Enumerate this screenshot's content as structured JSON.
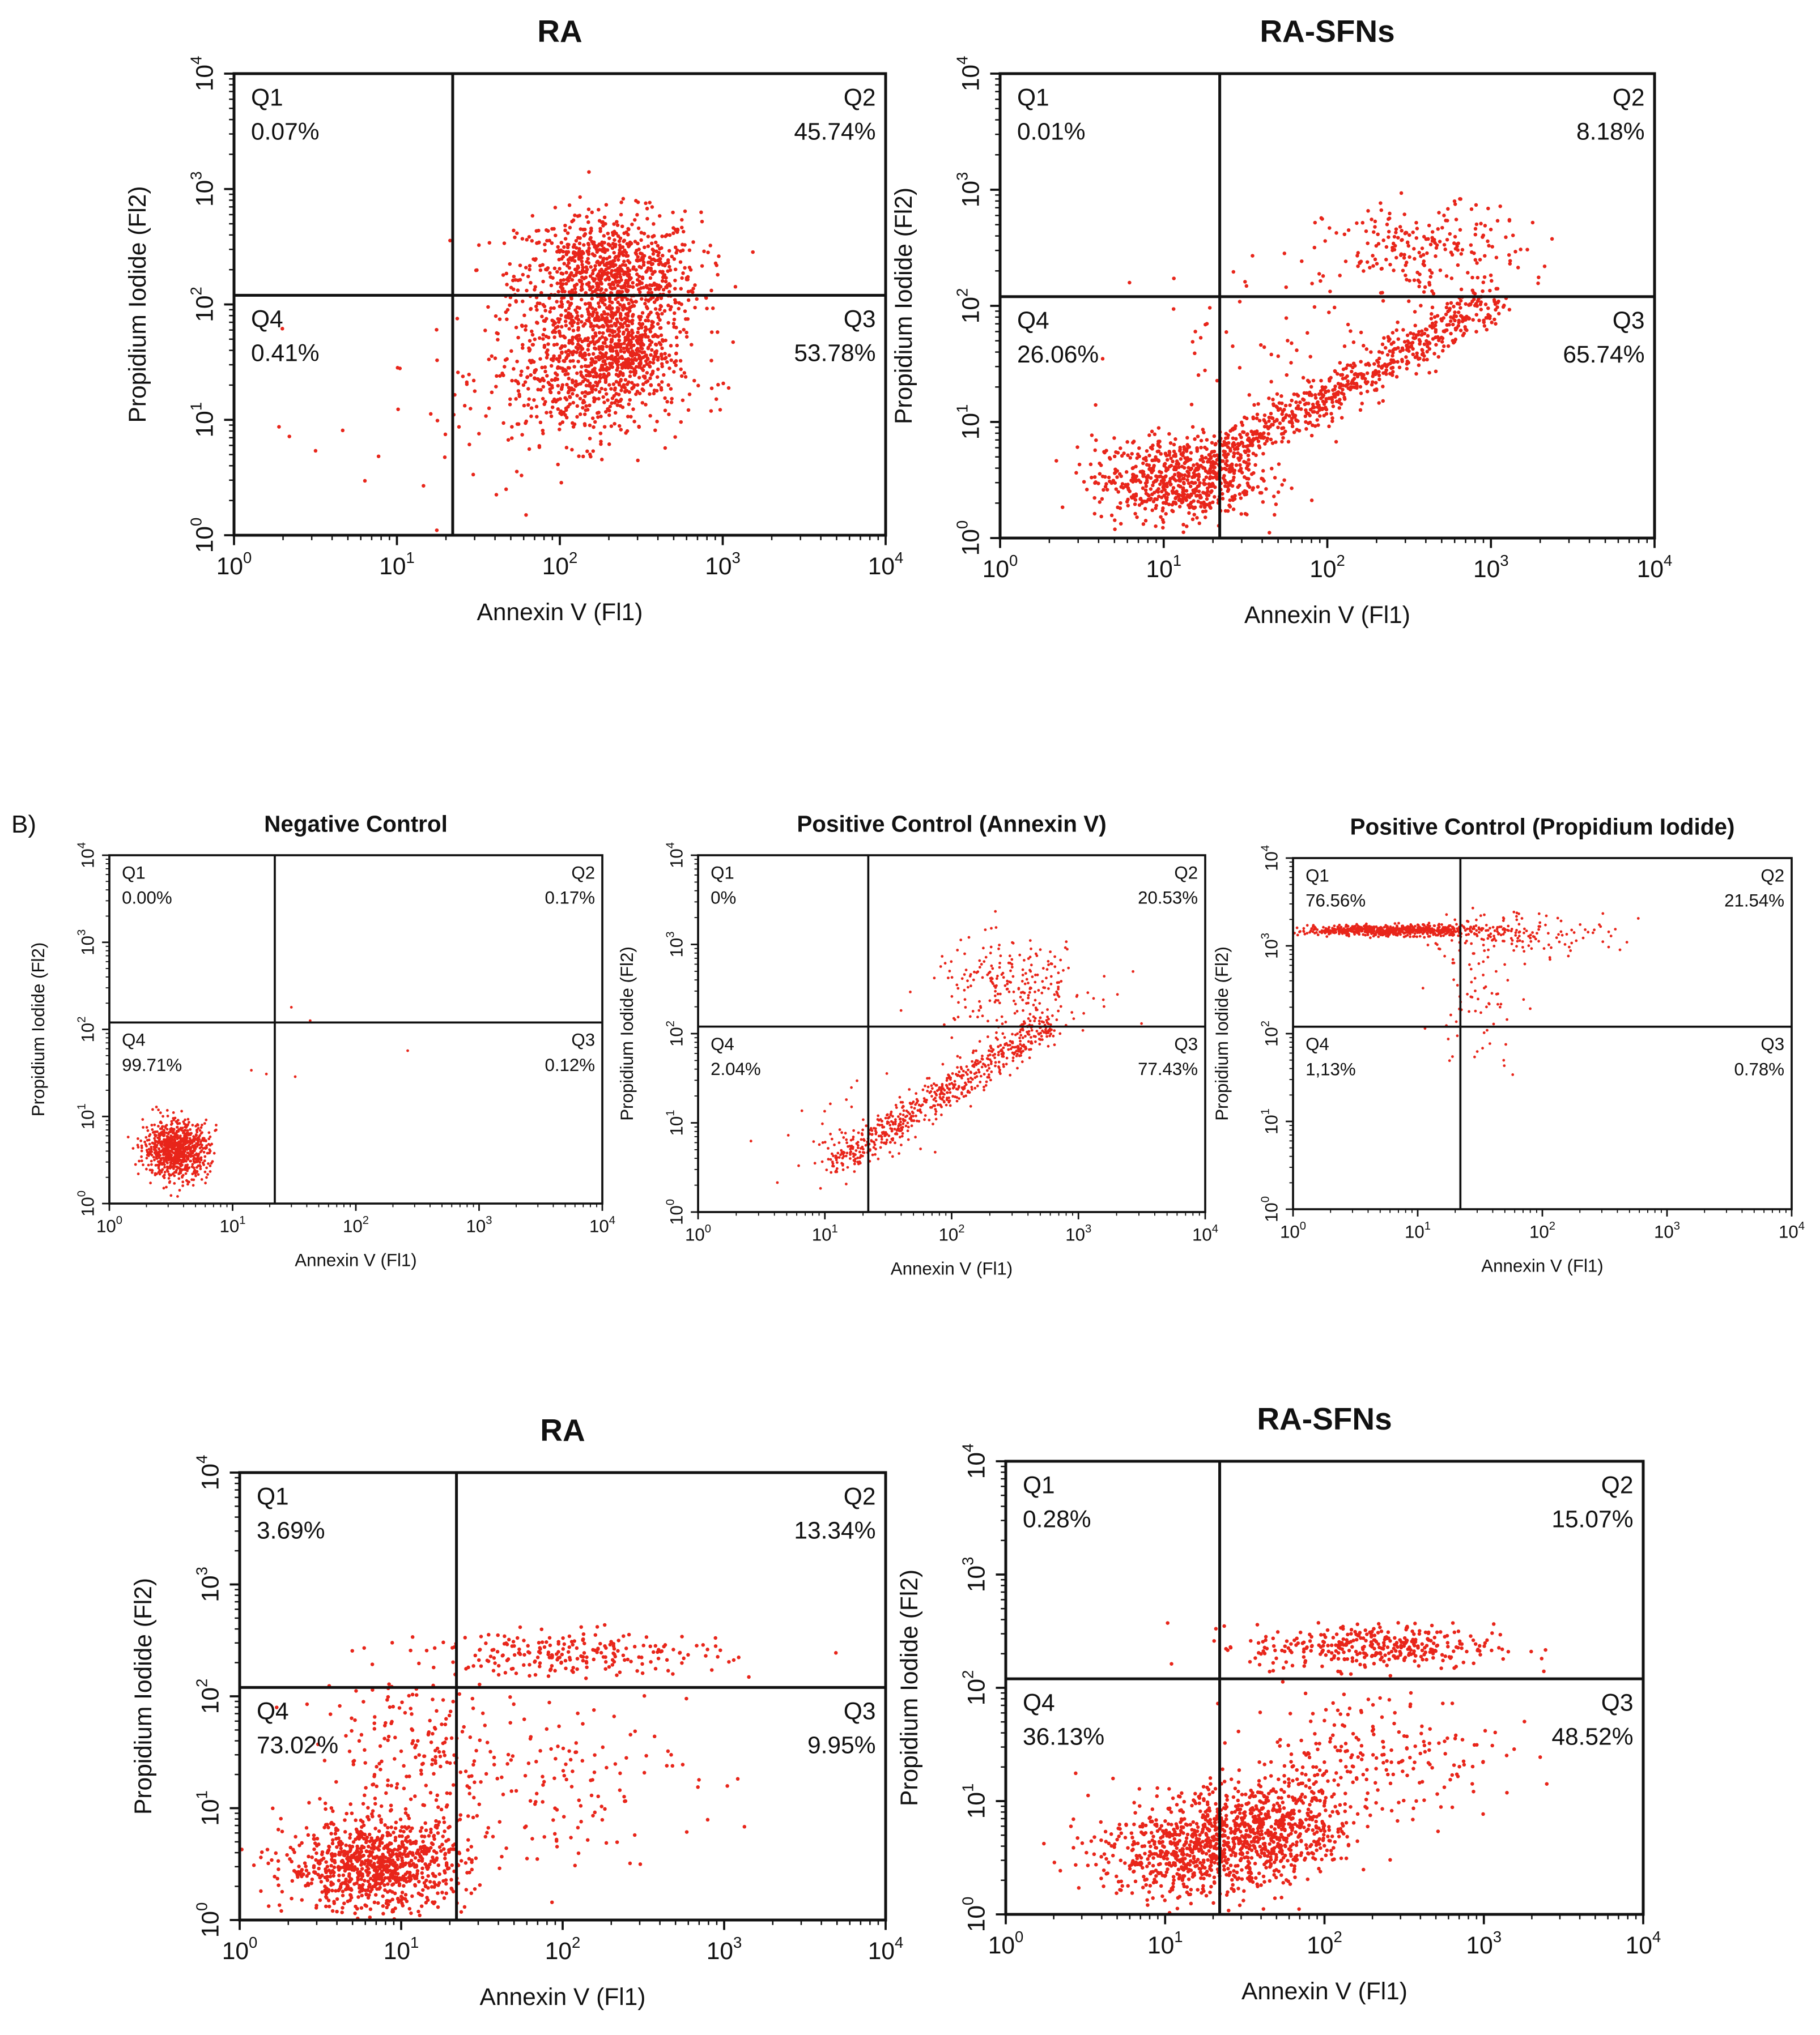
{
  "section_label": "B)",
  "colors": {
    "dots": "#e8251a",
    "axis": "#111111"
  },
  "chart_data": [
    {
      "type": "scatter",
      "title": "RA",
      "xlabel": "Annexin V (Fl1)",
      "ylabel": "Propidium Iodide (Fl2)",
      "x_scale": "log",
      "y_scale": "log",
      "xlim": [
        1,
        10000
      ],
      "ylim": [
        1,
        10000
      ],
      "x_ticks": [
        "10",
        "10",
        "10",
        "10",
        "10"
      ],
      "x_tick_exponents": [
        "0",
        "1",
        "2",
        "3",
        "4"
      ],
      "y_ticks": [
        "10",
        "10",
        "10",
        "10",
        "10"
      ],
      "y_tick_exponents": [
        "0",
        "1",
        "2",
        "3",
        "4"
      ],
      "gate": {
        "x": 22,
        "y": 120
      },
      "quadrants": [
        {
          "name": "Q1",
          "percent": "0.07%"
        },
        {
          "name": "Q2",
          "percent": "45.74%"
        },
        {
          "name": "Q3",
          "percent": "53.78%"
        },
        {
          "name": "Q4",
          "percent": "0.41%"
        }
      ],
      "clusters": [
        {
          "count": 950,
          "cx": 200,
          "cy": 170,
          "sx": 0.28,
          "sy": 0.28
        },
        {
          "count": 650,
          "cx": 140,
          "cy": 25,
          "sx": 0.3,
          "sy": 0.3
        },
        {
          "count": 300,
          "cx": 260,
          "cy": 40,
          "sx": 0.12,
          "sy": 0.2
        },
        {
          "count": 22,
          "cx": 10,
          "cy": 5,
          "sx": 0.5,
          "sy": 0.5
        }
      ]
    },
    {
      "type": "scatter",
      "title": "RA-SFNs",
      "xlabel": "Annexin V (Fl1)",
      "ylabel": "Propidium Iodide (Fl2)",
      "x_scale": "log",
      "y_scale": "log",
      "xlim": [
        1,
        10000
      ],
      "ylim": [
        1,
        10000
      ],
      "x_ticks": [
        "10",
        "10",
        "10",
        "10",
        "10"
      ],
      "x_tick_exponents": [
        "0",
        "1",
        "2",
        "3",
        "4"
      ],
      "y_ticks": [
        "10",
        "10",
        "10",
        "10",
        "10"
      ],
      "y_tick_exponents": [
        "0",
        "1",
        "2",
        "3",
        "4"
      ],
      "gate": {
        "x": 22,
        "y": 120
      },
      "quadrants": [
        {
          "name": "Q1",
          "percent": "0.01%"
        },
        {
          "name": "Q2",
          "percent": "8.18%"
        },
        {
          "name": "Q3",
          "percent": "65.74%"
        },
        {
          "name": "Q4",
          "percent": "26.06%"
        }
      ],
      "clusters": [
        {
          "count": 650,
          "cx": 12,
          "cy": 3.2,
          "sx": 0.25,
          "sy": 0.18
        },
        {
          "count": 700,
          "diag": true,
          "x0": 20,
          "y0": 4.5,
          "x1": 1000,
          "y1": 110,
          "sx": 0.08,
          "sy": 0.09
        },
        {
          "count": 220,
          "cx": 400,
          "cy": 300,
          "sx": 0.3,
          "sy": 0.2
        },
        {
          "count": 60,
          "cx": 60,
          "cy": 60,
          "sx": 0.45,
          "sy": 0.35
        }
      ]
    },
    {
      "type": "scatter",
      "title": "Negative Control",
      "xlabel": "Annexin V (Fl1)",
      "ylabel": "Propidium Iodide (Fl2)",
      "x_scale": "log",
      "y_scale": "log",
      "xlim": [
        1,
        10000
      ],
      "ylim": [
        1,
        10000
      ],
      "x_ticks": [
        "10",
        "10",
        "10",
        "10",
        "10"
      ],
      "x_tick_exponents": [
        "0",
        "1",
        "2",
        "3",
        "4"
      ],
      "y_ticks": [
        "10",
        "10",
        "10",
        "10",
        "10"
      ],
      "y_tick_exponents": [
        "0",
        "1",
        "2",
        "3",
        "4"
      ],
      "gate": {
        "x": 22,
        "y": 120
      },
      "quadrants": [
        {
          "name": "Q1",
          "percent": "0.00%"
        },
        {
          "name": "Q2",
          "percent": "0.17%"
        },
        {
          "name": "Q3",
          "percent": "0.12%"
        },
        {
          "name": "Q4",
          "percent": "99.71%"
        }
      ],
      "clusters": [
        {
          "count": 900,
          "cx": 3.5,
          "cy": 4.2,
          "sx": 0.13,
          "sy": 0.16
        },
        {
          "count": 6,
          "cx": 40,
          "cy": 60,
          "sx": 0.3,
          "sy": 0.3
        }
      ]
    },
    {
      "type": "scatter",
      "title": "Positive Control (Annexin V)",
      "xlabel": "Annexin V (Fl1)",
      "ylabel": "Propidium Iodide (Fl2)",
      "x_scale": "log",
      "y_scale": "log",
      "xlim": [
        1,
        10000
      ],
      "ylim": [
        1,
        10000
      ],
      "x_ticks": [
        "10",
        "10",
        "10",
        "10",
        "10"
      ],
      "x_tick_exponents": [
        "0",
        "1",
        "2",
        "3",
        "4"
      ],
      "y_ticks": [
        "10",
        "10",
        "10",
        "10",
        "10"
      ],
      "y_tick_exponents": [
        "0",
        "1",
        "2",
        "3",
        "4"
      ],
      "gate": {
        "x": 22,
        "y": 120
      },
      "quadrants": [
        {
          "name": "Q1",
          "percent": "0%"
        },
        {
          "name": "Q2",
          "percent": "20.53%"
        },
        {
          "name": "Q3",
          "percent": "77.43%"
        },
        {
          "name": "Q4",
          "percent": "2.04%"
        }
      ],
      "clusters": [
        {
          "count": 650,
          "diag": true,
          "x0": 12,
          "y0": 3.5,
          "x1": 600,
          "y1": 130,
          "sx": 0.09,
          "sy": 0.08
        },
        {
          "count": 230,
          "cx": 300,
          "cy": 350,
          "sx": 0.32,
          "sy": 0.25
        },
        {
          "count": 40,
          "cx": 18,
          "cy": 7,
          "sx": 0.3,
          "sy": 0.3
        }
      ]
    },
    {
      "type": "scatter",
      "title": "Positive Control (Propidium Iodide)",
      "xlabel": "Annexin V (Fl1)",
      "ylabel": "Propidium Iodide (Fl2)",
      "x_scale": "log",
      "y_scale": "log",
      "xlim": [
        1,
        10000
      ],
      "ylim": [
        1,
        10000
      ],
      "x_ticks": [
        "10",
        "10",
        "10",
        "10",
        "10"
      ],
      "x_tick_exponents": [
        "0",
        "1",
        "2",
        "3",
        "4"
      ],
      "y_ticks": [
        "10",
        "10",
        "10",
        "10",
        "10"
      ],
      "y_tick_exponents": [
        "0",
        "1",
        "2",
        "3",
        "4"
      ],
      "gate": {
        "x": 22,
        "y": 120
      },
      "quadrants": [
        {
          "name": "Q1",
          "percent": "76.56%"
        },
        {
          "name": "Q2",
          "percent": "21.54%"
        },
        {
          "name": "Q3",
          "percent": "0.78%"
        },
        {
          "name": "Q4",
          "percent": "1,13%"
        }
      ],
      "clusters": [
        {
          "count": 650,
          "cx": 6,
          "cy": 1500,
          "sx": 0.38,
          "sy": 0.03
        },
        {
          "count": 160,
          "cx": 60,
          "cy": 1400,
          "sx": 0.4,
          "sy": 0.12
        },
        {
          "count": 70,
          "cx": 30,
          "cy": 250,
          "sx": 0.18,
          "sy": 0.4
        }
      ]
    },
    {
      "type": "scatter",
      "title": "RA",
      "xlabel": "Annexin V (Fl1)",
      "ylabel": "Propidium Iodide (Fl2)",
      "x_scale": "log",
      "y_scale": "log",
      "xlim": [
        1,
        10000
      ],
      "ylim": [
        1,
        10000
      ],
      "x_ticks": [
        "10",
        "10",
        "10",
        "10",
        "10"
      ],
      "x_tick_exponents": [
        "0",
        "1",
        "2",
        "3",
        "4"
      ],
      "y_ticks": [
        "10",
        "10",
        "10",
        "10",
        "10"
      ],
      "y_tick_exponents": [
        "0",
        "1",
        "2",
        "3",
        "4"
      ],
      "gate": {
        "x": 22,
        "y": 120
      },
      "quadrants": [
        {
          "name": "Q1",
          "percent": "3.69%"
        },
        {
          "name": "Q2",
          "percent": "13.34%"
        },
        {
          "name": "Q3",
          "percent": "9.95%"
        },
        {
          "name": "Q4",
          "percent": "73.02%"
        }
      ],
      "clusters": [
        {
          "count": 900,
          "cx": 7,
          "cy": 3,
          "sx": 0.28,
          "sy": 0.2
        },
        {
          "count": 220,
          "cx": 120,
          "cy": 240,
          "sx": 0.45,
          "sy": 0.1
        },
        {
          "count": 200,
          "cx": 12,
          "cy": 25,
          "sx": 0.28,
          "sy": 0.42
        },
        {
          "count": 150,
          "cx": 80,
          "cy": 20,
          "sx": 0.45,
          "sy": 0.4
        }
      ]
    },
    {
      "type": "scatter",
      "title": "RA-SFNs",
      "xlabel": "Annexin V (Fl1)",
      "ylabel": "Propidium Iodide (Fl2)",
      "x_scale": "log",
      "y_scale": "log",
      "xlim": [
        1,
        10000
      ],
      "ylim": [
        1,
        10000
      ],
      "x_ticks": [
        "10",
        "10",
        "10",
        "10",
        "10"
      ],
      "x_tick_exponents": [
        "0",
        "1",
        "2",
        "3",
        "4"
      ],
      "y_ticks": [
        "10",
        "10",
        "10",
        "10",
        "10"
      ],
      "y_tick_exponents": [
        "0",
        "1",
        "2",
        "3",
        "4"
      ],
      "gate": {
        "x": 22,
        "y": 120
      },
      "quadrants": [
        {
          "name": "Q1",
          "percent": "0.28%"
        },
        {
          "name": "Q2",
          "percent": "15.07%"
        },
        {
          "name": "Q3",
          "percent": "48.52%"
        },
        {
          "name": "Q4",
          "percent": "36.13%"
        }
      ],
      "clusters": [
        {
          "count": 650,
          "cx": 14,
          "cy": 3.5,
          "sx": 0.3,
          "sy": 0.22
        },
        {
          "count": 600,
          "cx": 45,
          "cy": 6,
          "sx": 0.25,
          "sy": 0.22
        },
        {
          "count": 350,
          "cx": 200,
          "cy": 230,
          "sx": 0.38,
          "sy": 0.1
        },
        {
          "count": 220,
          "cx": 200,
          "cy": 25,
          "sx": 0.4,
          "sy": 0.3
        }
      ]
    }
  ]
}
